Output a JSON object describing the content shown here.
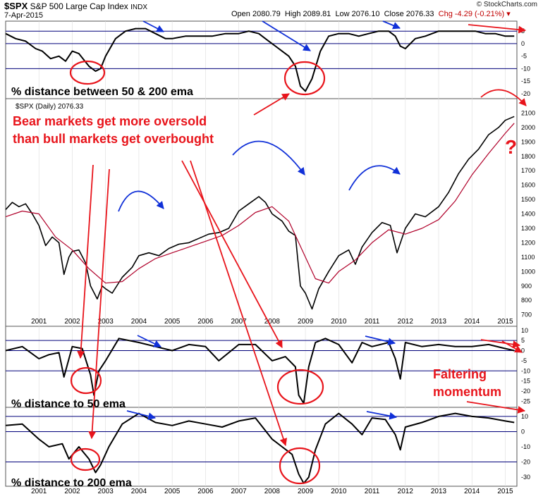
{
  "header": {
    "symbol": "$SPX",
    "name": "S&P 500 Large Cap Index",
    "exchange": "INDX",
    "date": "7-Apr-2015",
    "open": "Open 2080.79",
    "high": "High 2089.81",
    "low": "Low 2076.10",
    "close": "Close 2076.33",
    "chg": "Chg -4.29 (-0.21%)",
    "credit": "© StockCharts.com"
  },
  "colors": {
    "price": "#000000",
    "ema": "#b0002a",
    "annotation_red": "#e8141b",
    "annotation_blue": "#1030d8",
    "refline": "#00007a"
  },
  "chart_data": [
    {
      "type": "line",
      "panel": "top",
      "label": "% distance between 50 & 200 ema",
      "ylim": [
        -22,
        9
      ],
      "yticks": [
        5,
        0,
        -5,
        -10,
        -15,
        -20
      ],
      "reference_lines": [
        5,
        0,
        -10
      ],
      "x": [
        2000.0,
        2000.3,
        2000.6,
        2000.9,
        2001.1,
        2001.35,
        2001.6,
        2001.8,
        2002.0,
        2002.2,
        2002.5,
        2002.7,
        2002.85,
        2003.0,
        2003.3,
        2003.6,
        2003.9,
        2004.2,
        2004.5,
        2004.8,
        2005.0,
        2005.4,
        2005.8,
        2006.2,
        2006.6,
        2007.0,
        2007.3,
        2007.6,
        2007.9,
        2008.1,
        2008.3,
        2008.5,
        2008.7,
        2008.85,
        2009.0,
        2009.2,
        2009.45,
        2009.7,
        2010.0,
        2010.3,
        2010.6,
        2010.9,
        2011.2,
        2011.5,
        2011.7,
        2011.85,
        2012.0,
        2012.3,
        2012.6,
        2013.0,
        2013.4,
        2013.8,
        2014.1,
        2014.4,
        2014.7,
        2015.0,
        2015.27
      ],
      "y": [
        4,
        2,
        1,
        -2,
        -3,
        -6,
        -5,
        -7,
        -3,
        -4,
        -9,
        -11,
        -10,
        -5,
        2,
        5,
        6,
        6,
        4,
        2,
        2,
        3,
        3,
        3,
        4,
        4,
        5,
        4,
        1,
        -1,
        -3,
        -5,
        -9,
        -17,
        -19,
        -14,
        -3,
        3,
        4,
        4,
        3,
        4,
        5,
        5,
        3,
        -1,
        -2,
        2,
        3,
        5,
        5,
        5,
        5,
        4,
        4,
        3,
        3
      ]
    },
    {
      "type": "line",
      "panel": "main",
      "title": "$SPX (Daily) 2076.33",
      "ylim": [
        620,
        2200
      ],
      "yticks": [
        700,
        800,
        900,
        1000,
        1100,
        1200,
        1300,
        1400,
        1500,
        1600,
        1700,
        1800,
        1900,
        2000,
        2100
      ],
      "x": [
        2000.0,
        2000.2,
        2000.4,
        2000.6,
        2000.8,
        2001.0,
        2001.2,
        2001.4,
        2001.6,
        2001.75,
        2001.9,
        2002.0,
        2002.2,
        2002.4,
        2002.55,
        2002.75,
        2002.9,
        2003.0,
        2003.2,
        2003.5,
        2003.8,
        2004.0,
        2004.3,
        2004.6,
        2004.9,
        2005.2,
        2005.5,
        2005.8,
        2006.1,
        2006.4,
        2006.7,
        2007.0,
        2007.3,
        2007.6,
        2007.8,
        2008.0,
        2008.3,
        2008.5,
        2008.7,
        2008.85,
        2009.0,
        2009.2,
        2009.4,
        2009.7,
        2010.0,
        2010.3,
        2010.5,
        2010.7,
        2011.0,
        2011.3,
        2011.55,
        2011.75,
        2012.0,
        2012.3,
        2012.6,
        2013.0,
        2013.3,
        2013.6,
        2013.9,
        2014.2,
        2014.5,
        2014.8,
        2015.0,
        2015.27
      ],
      "y": [
        1430,
        1480,
        1450,
        1470,
        1400,
        1320,
        1180,
        1240,
        1200,
        980,
        1100,
        1140,
        1150,
        1060,
        900,
        810,
        900,
        880,
        850,
        960,
        1030,
        1110,
        1130,
        1110,
        1160,
        1190,
        1200,
        1230,
        1260,
        1270,
        1300,
        1420,
        1470,
        1520,
        1480,
        1400,
        1350,
        1280,
        1250,
        900,
        850,
        740,
        880,
        1000,
        1110,
        1150,
        1050,
        1170,
        1270,
        1340,
        1320,
        1130,
        1300,
        1400,
        1380,
        1450,
        1550,
        1680,
        1780,
        1850,
        1950,
        2000,
        2050,
        2076
      ]
    },
    {
      "type": "line",
      "panel": "main-ema",
      "name": "200 ema",
      "x": [
        2000.0,
        2000.5,
        2001.0,
        2001.5,
        2002.0,
        2002.5,
        2003.0,
        2003.5,
        2004.0,
        2004.5,
        2005.0,
        2005.5,
        2006.0,
        2006.5,
        2007.0,
        2007.5,
        2008.0,
        2008.5,
        2009.0,
        2009.3,
        2009.7,
        2010.0,
        2010.5,
        2011.0,
        2011.5,
        2012.0,
        2012.5,
        2013.0,
        2013.5,
        2014.0,
        2014.5,
        2015.0,
        2015.27
      ],
      "y": [
        1380,
        1420,
        1400,
        1240,
        1150,
        1020,
        920,
        930,
        1020,
        1090,
        1130,
        1170,
        1210,
        1250,
        1320,
        1410,
        1450,
        1350,
        1100,
        950,
        920,
        1000,
        1080,
        1200,
        1290,
        1260,
        1300,
        1360,
        1490,
        1670,
        1820,
        1960,
        2030
      ]
    },
    {
      "type": "line",
      "panel": "mid",
      "label": "% distance to 50 ema",
      "ylim": [
        -28,
        12
      ],
      "yticks": [
        10,
        5,
        0,
        -5,
        -10,
        -15,
        -20,
        -25
      ],
      "reference_lines": [
        5,
        0,
        -10
      ],
      "x": [
        2000.0,
        2000.5,
        2001.0,
        2001.3,
        2001.6,
        2001.75,
        2002.0,
        2002.3,
        2002.55,
        2002.65,
        2002.8,
        2003.0,
        2003.4,
        2004.0,
        2004.5,
        2005.0,
        2005.5,
        2006.0,
        2006.4,
        2007.0,
        2007.5,
        2008.0,
        2008.4,
        2008.7,
        2008.8,
        2008.95,
        2009.1,
        2009.3,
        2009.6,
        2010.0,
        2010.4,
        2010.7,
        2011.0,
        2011.5,
        2011.7,
        2011.85,
        2012.0,
        2012.5,
        2013.0,
        2013.5,
        2014.0,
        2014.5,
        2015.0,
        2015.27
      ],
      "y": [
        0,
        2,
        -4,
        -2,
        -1,
        -13,
        2,
        1,
        -12,
        -22,
        -10,
        -5,
        6,
        4,
        2,
        0,
        3,
        2,
        -5,
        3,
        3,
        -5,
        -3,
        -8,
        -22,
        -26,
        -8,
        4,
        6,
        3,
        -6,
        4,
        2,
        4,
        -4,
        -14,
        4,
        2,
        3,
        2,
        2,
        3,
        1,
        0
      ]
    },
    {
      "type": "line",
      "panel": "bottom",
      "label": "% distance to 200 ema",
      "ylim": [
        -36,
        16
      ],
      "yticks": [
        10,
        0,
        -10,
        -20,
        -30
      ],
      "reference_lines": [
        10,
        0,
        -20
      ],
      "x": [
        2000.0,
        2000.5,
        2001.0,
        2001.3,
        2001.7,
        2001.9,
        2002.2,
        2002.5,
        2002.7,
        2002.85,
        2003.1,
        2003.5,
        2004.0,
        2004.5,
        2005.0,
        2005.5,
        2006.0,
        2006.5,
        2007.0,
        2007.5,
        2008.0,
        2008.3,
        2008.6,
        2008.8,
        2008.95,
        2009.1,
        2009.3,
        2009.6,
        2010.0,
        2010.4,
        2010.7,
        2011.0,
        2011.4,
        2011.7,
        2011.85,
        2012.0,
        2012.5,
        2013.0,
        2013.5,
        2014.0,
        2014.5,
        2015.0,
        2015.27
      ],
      "y": [
        4,
        5,
        -5,
        -10,
        -8,
        -18,
        -10,
        -18,
        -27,
        -22,
        -10,
        5,
        12,
        6,
        4,
        7,
        5,
        3,
        7,
        9,
        -5,
        -10,
        -15,
        -28,
        -34,
        -30,
        -12,
        5,
        12,
        5,
        -2,
        9,
        8,
        -2,
        -12,
        3,
        6,
        10,
        12,
        10,
        9,
        7,
        6
      ]
    }
  ],
  "x_axis": {
    "years": [
      "2001",
      "2002",
      "2003",
      "2004",
      "2005",
      "2006",
      "2007",
      "2008",
      "2009",
      "2010",
      "2011",
      "2012",
      "2013",
      "2014",
      "2015"
    ],
    "range": [
      2000.0,
      2015.35
    ]
  },
  "annotations": {
    "bear_line1": "Bear markets get more oversold",
    "bear_line2": "than bull markets get overbought",
    "question": "?",
    "faltering1": "Faltering",
    "faltering2": "momentum"
  }
}
